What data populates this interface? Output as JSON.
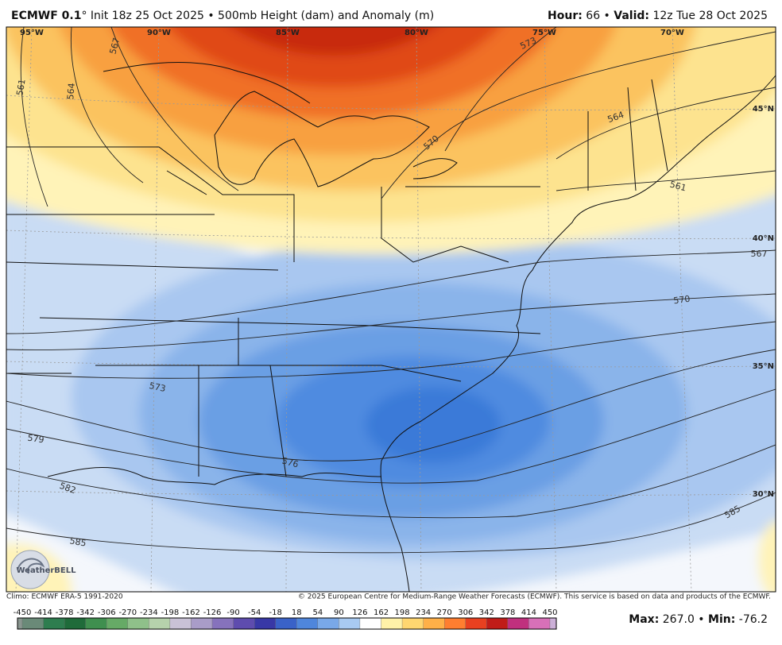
{
  "header": {
    "model": "ECMWF 0.1",
    "title_rest": "° Init 18z 25 Oct 2025 • 500mb Height (dam) and Anomaly (m)",
    "hour_label": "Hour:",
    "hour_value": "66 •",
    "valid_label": "Valid:",
    "valid_value": "12z Tue 28 Oct 2025"
  },
  "map": {
    "longitude_labels": [
      "95°W",
      "90°W",
      "85°W",
      "80°W",
      "75°W",
      "70°W"
    ],
    "latitude_labels": [
      "45°N",
      "40°N",
      "35°N",
      "30°N"
    ],
    "contour_labels": [
      561,
      564,
      567,
      573,
      570,
      564,
      561,
      567,
      570,
      573,
      579,
      576,
      582,
      585,
      585
    ],
    "logo": "WeatherBELL"
  },
  "footer": {
    "climo": "Climo: ECMWF ERA-5 1991-2020",
    "copyright": "© 2025 European Centre for Medium-Range Weather Forecasts (ECMWF). This service is based on data and products of the ECMWF."
  },
  "colorbar": {
    "ticks": [
      -450,
      -414,
      -378,
      -342,
      -306,
      -270,
      -234,
      -198,
      -162,
      -126,
      -90,
      -54,
      -18,
      18,
      54,
      90,
      126,
      162,
      198,
      234,
      270,
      306,
      342,
      378,
      414,
      450
    ]
  },
  "stats": {
    "max_label": "Max:",
    "max_value": "267.0 •",
    "min_label": "Min:",
    "min_value": "-76.2"
  }
}
